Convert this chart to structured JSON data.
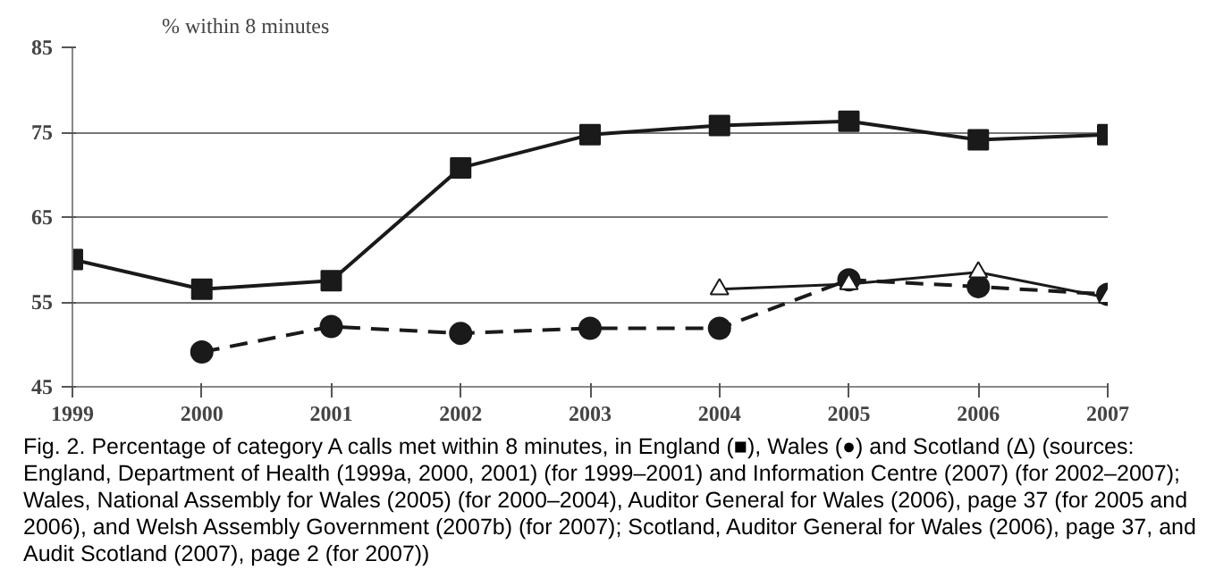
{
  "chart_data": {
    "type": "line",
    "ylabel": "% within 8 minutes",
    "x": [
      1999,
      2000,
      2001,
      2002,
      2003,
      2004,
      2005,
      2006,
      2007
    ],
    "xlim": [
      1999,
      2007
    ],
    "xticks": [
      1999,
      2000,
      2001,
      2002,
      2003,
      2004,
      2005,
      2006,
      2007
    ],
    "ylim": [
      45,
      85
    ],
    "yticks": [
      45,
      55,
      65,
      75,
      85
    ],
    "grid": "y",
    "series": [
      {
        "color": "#1a1a1a",
        "marker": "square",
        "line_style": "solid",
        "values": [
          60,
          56.5,
          57.5,
          70.8,
          74.7,
          75.8,
          76.3,
          74.1,
          74.7
        ]
      },
      {
        "color": "#1a1a1a",
        "marker": "circle",
        "line_style": "dashed",
        "values": [
          null,
          49.1,
          52.1,
          51.3,
          51.9,
          51.9,
          57.6,
          56.8,
          55.9
        ]
      },
      {
        "color": "#1a1a1a",
        "marker": "triangle",
        "line_style": "solid",
        "values": [
          null,
          null,
          null,
          null,
          null,
          56.5,
          57.1,
          58.5,
          55.5
        ]
      }
    ],
    "annotations": [
      "Fig. 2.  Percentage of category A calls met within 8 minutes, in England (■), Wales (●) and Scotland (Δ) (sources: England, Department of Health (1999a, 2000, 2001) (for 1999–2001) and Information Centre (2007) (for 2002–2007); Wales, National Assembly for Wales (2005) (for 2000–2004), Auditor General for Wales (2006), page 37 (for 2005 and 2006), and Welsh Assembly Government (2007b) (for 2007); Scotland, Auditor General for Wales (2006), page 37, and Audit Scotland (2007), page 2 (for 2007))"
    ]
  }
}
